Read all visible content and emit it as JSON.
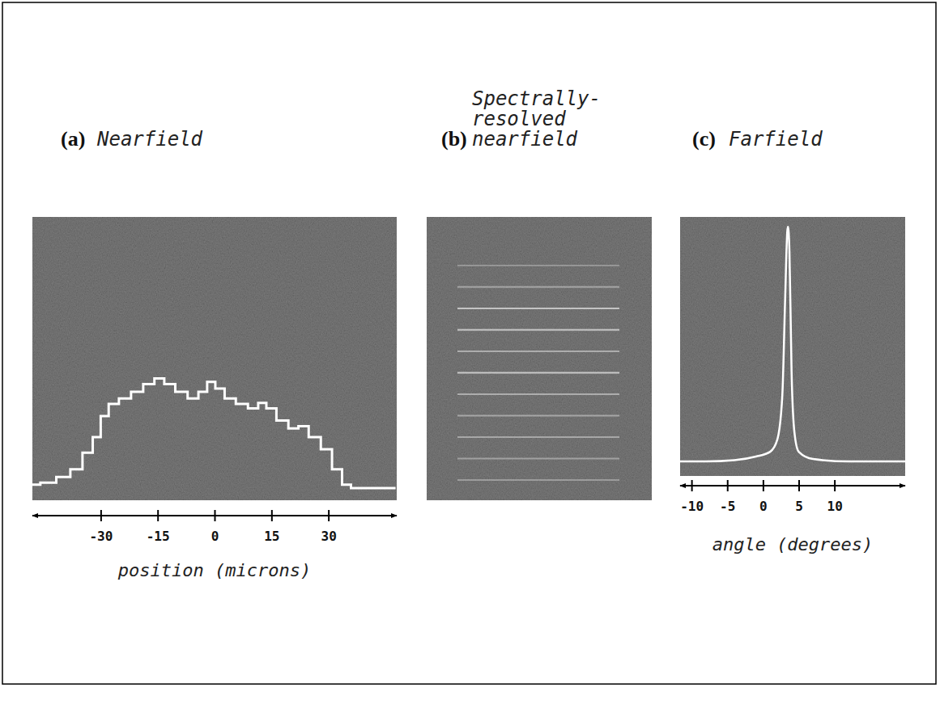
{
  "chart_data": [
    {
      "type": "line",
      "panel_label": "(a)",
      "title": "Nearfield",
      "x_label": "position (microns)",
      "x": [
        -48,
        -43.8,
        -39.6,
        -36.4,
        -33.2,
        -31,
        -29,
        -26.8,
        -23.6,
        -20.4,
        -17.2,
        -14.5,
        -12,
        -8.7,
        -5.5,
        -3,
        -0.9,
        1.3,
        4,
        7.2,
        10.4,
        12.6,
        14.7,
        17.9,
        21,
        23.2,
        26.4,
        29.6,
        32.3,
        34.9,
        37,
        47.7
      ],
      "values": [
        0.04,
        0.06,
        0.11,
        0.18,
        0.33,
        0.47,
        0.66,
        0.77,
        0.82,
        0.88,
        0.95,
        1.0,
        0.95,
        0.88,
        0.82,
        0.88,
        0.97,
        0.91,
        0.82,
        0.77,
        0.73,
        0.78,
        0.73,
        0.62,
        0.55,
        0.57,
        0.47,
        0.36,
        0.18,
        0.04,
        0.01,
        0.01
      ],
      "xlim": [
        -48,
        48
      ],
      "ylim": [
        -0.1,
        2.46
      ],
      "xticks": [
        -30,
        -15,
        0,
        15,
        30
      ],
      "tick_labels": "x",
      "color": "#ffffff"
    },
    {
      "type": "spectral_lines",
      "panel_label": "(b)",
      "title": "Spectrally-resolved nearfield",
      "values": [
        0.35,
        0.5,
        0.75,
        0.8,
        0.55,
        0.8,
        0.55,
        0.5,
        0.5,
        0.45,
        0.4
      ],
      "tick_labels": false,
      "color": "#e0e0e0"
    },
    {
      "type": "line",
      "panel_label": "(c)",
      "title": "Farfield",
      "x_label": "angle (degrees)",
      "x": [
        -11.6,
        -8,
        -4,
        -1,
        1,
        2,
        2.7,
        3.1,
        3.4,
        3.5,
        3.7,
        4.0,
        4.4,
        5,
        7,
        12,
        19.9
      ],
      "values": [
        0.03,
        0.03,
        0.035,
        0.05,
        0.07,
        0.12,
        0.3,
        0.7,
        0.98,
        1.0,
        0.9,
        0.4,
        0.15,
        0.07,
        0.04,
        0.03,
        0.03
      ],
      "xlim": [
        -11.6,
        19.9
      ],
      "ylim": [
        -0.03,
        1.04
      ],
      "xticks": [
        -10,
        -5,
        0,
        5,
        10
      ],
      "tick_labels": "x",
      "color": "#ffffff"
    }
  ]
}
